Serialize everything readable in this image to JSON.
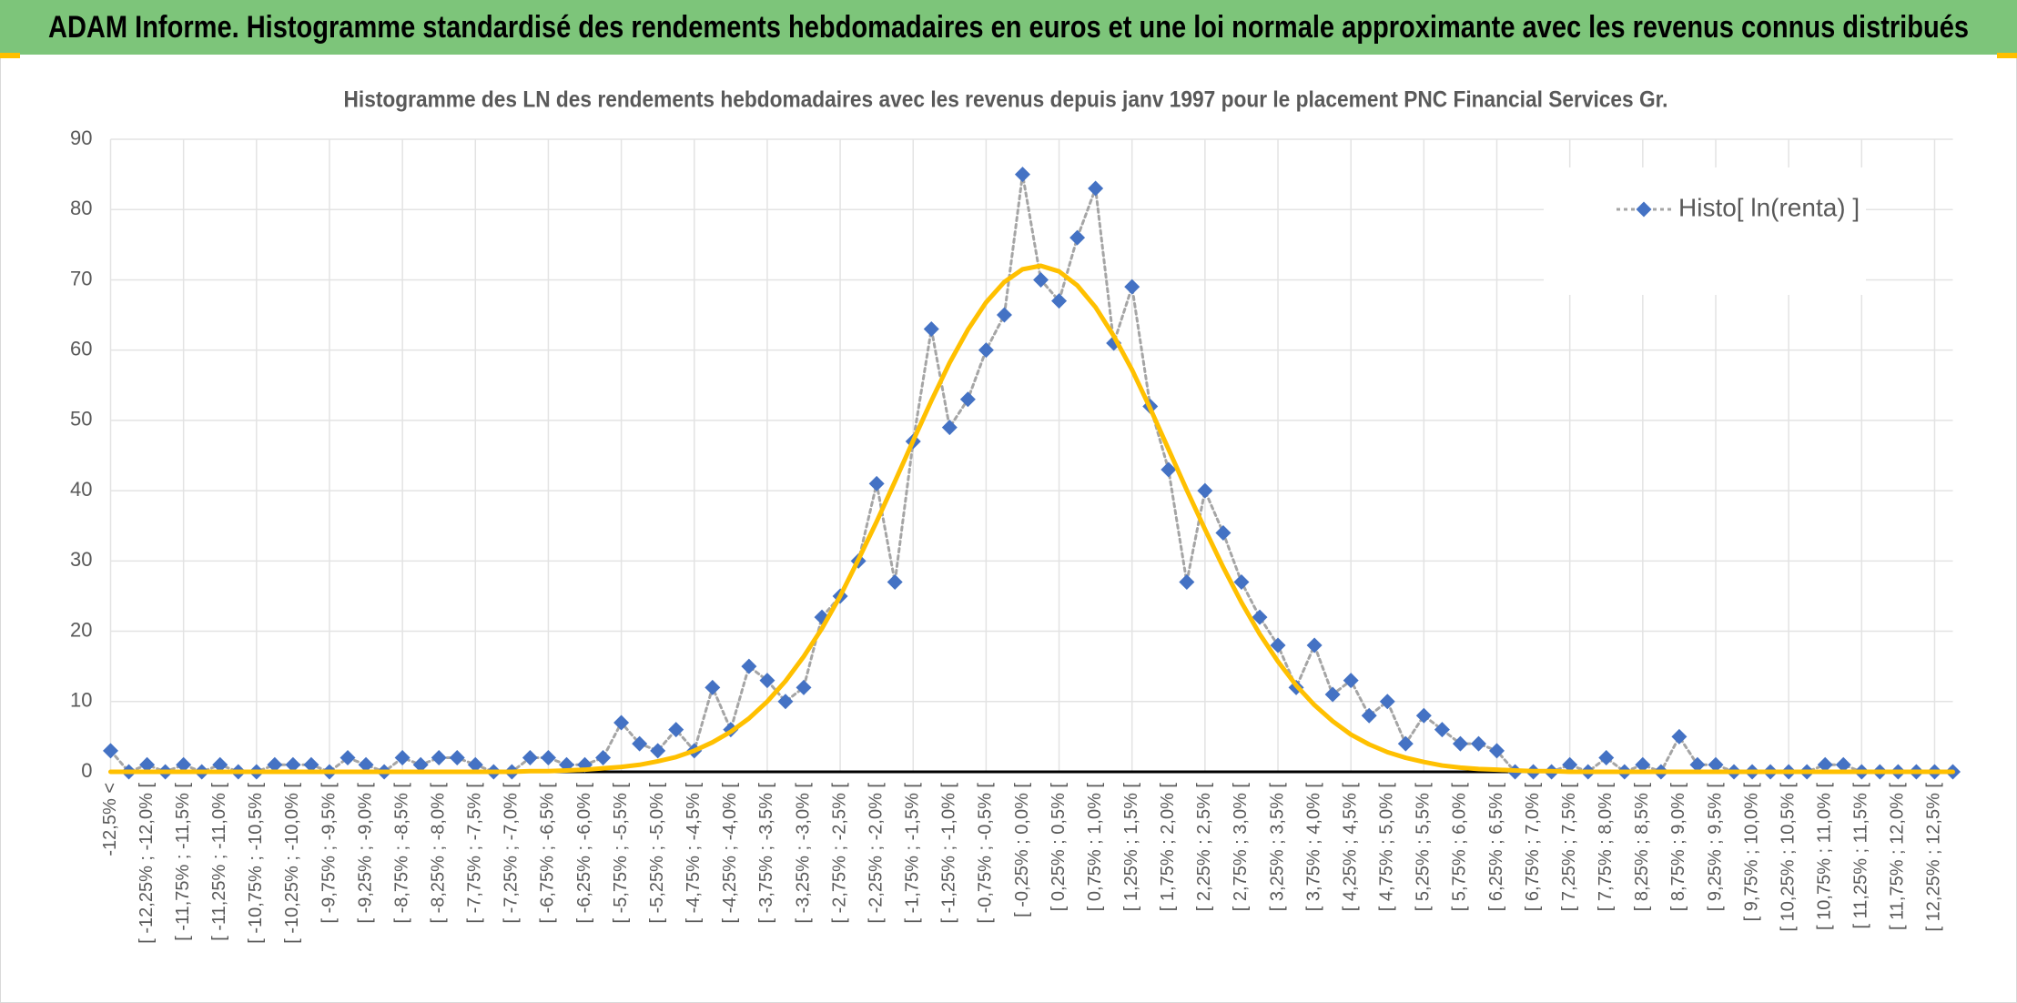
{
  "header": {
    "title": "ADAM Informe. Histogramme standardisé des rendements hebdomadaires en euros et une loi normale approximante avec les revenus connus distribués"
  },
  "chart_data": {
    "type": "line",
    "title": "Histogramme des LN des rendements hebdomadaires avec les revenus depuis janv 1997 pour le placement PNC Financial Services Gr.",
    "categories": [
      "-12,5% <",
      null,
      "[ -12,25% ; -12,0% [",
      null,
      "[ -11,75% ; -11,5% [",
      null,
      "[ -11,25% ; -11,0% [",
      null,
      "[ -10,75% ; -10,5% [",
      null,
      "[ -10,25% ; -10,0% [",
      null,
      "[ -9,75% ; -9,5% [",
      null,
      "[ -9,25% ; -9,0% [",
      null,
      "[ -8,75% ; -8,5% [",
      null,
      "[ -8,25% ; -8,0% [",
      null,
      "[ -7,75% ; -7,5% [",
      null,
      "[ -7,25% ; -7,0% [",
      null,
      "[ -6,75% ; -6,5% [",
      null,
      "[ -6,25% ; -6,0% [",
      null,
      "[ -5,75% ; -5,5% [",
      null,
      "[ -5,25% ; -5,0% [",
      null,
      "[ -4,75% ; -4,5% [",
      null,
      "[ -4,25% ; -4,0% [",
      null,
      "[ -3,75% ; -3,5% [",
      null,
      "[ -3,25% ; -3,0% [",
      null,
      "[ -2,75% ; -2,5% [",
      null,
      "[ -2,25% ; -2,0% [",
      null,
      "[ -1,75% ; -1,5% [",
      null,
      "[ -1,25% ; -1,0% [",
      null,
      "[ -0,75% ; -0,5% [",
      null,
      "[ -0,25% ; 0,0% [",
      null,
      "[ 0,25% ; 0,5% [",
      null,
      "[ 0,75% ; 1,0% [",
      null,
      "[ 1,25% ; 1,5% [",
      null,
      "[ 1,75% ; 2,0% [",
      null,
      "[ 2,25% ; 2,5% [",
      null,
      "[ 2,75% ; 3,0% [",
      null,
      "[ 3,25% ; 3,5% [",
      null,
      "[ 3,75% ; 4,0% [",
      null,
      "[ 4,25% ; 4,5% [",
      null,
      "[ 4,75% ; 5,0% [",
      null,
      "[ 5,25% ; 5,5% [",
      null,
      "[ 5,75% ; 6,0% [",
      null,
      "[ 6,25% ; 6,5% [",
      null,
      "[ 6,75% ; 7,0% [",
      null,
      "[ 7,25% ; 7,5% [",
      null,
      "[ 7,75% ; 8,0% [",
      null,
      "[ 8,25% ; 8,5% [",
      null,
      "[ 8,75% ; 9,0% [",
      null,
      "[ 9,25% ; 9,5% [",
      null,
      "[ 9,75% ; 10,0% [",
      null,
      "[ 10,25% ; 10,5% [",
      null,
      "[ 10,75% ; 11,0% [",
      null,
      "[ 11,25% ; 11,5% [",
      null,
      "[ 11,75% ; 12,0% [",
      null,
      "[ 12,25% ; 12,5% [",
      null
    ],
    "series": [
      {
        "name": "Histo[ ln(renta) ]",
        "color": "#4472c4",
        "line_color": "#a5a5a5",
        "values": [
          3,
          0,
          1,
          0,
          1,
          0,
          1,
          0,
          0,
          1,
          1,
          1,
          0,
          2,
          1,
          0,
          2,
          1,
          2,
          2,
          1,
          0,
          0,
          2,
          2,
          1,
          1,
          2,
          7,
          4,
          3,
          6,
          3,
          12,
          6,
          15,
          13,
          10,
          12,
          22,
          25,
          30,
          41,
          27,
          47,
          63,
          49,
          53,
          60,
          65,
          85,
          70,
          67,
          76,
          83,
          61,
          69,
          52,
          43,
          27,
          40,
          34,
          27,
          22,
          18,
          12,
          18,
          11,
          13,
          8,
          10,
          4,
          8,
          6,
          4,
          4,
          3,
          0,
          0,
          0,
          1,
          0,
          2,
          0,
          1,
          0,
          5,
          1,
          1,
          0,
          0,
          0,
          0,
          0,
          1,
          1,
          0,
          0,
          0,
          0,
          0,
          0
        ]
      },
      {
        "color": "#ffc000",
        "values": [
          0,
          0,
          0,
          0,
          0,
          0,
          0,
          0,
          0,
          0,
          0,
          0,
          0,
          0,
          0,
          0,
          0,
          0,
          0,
          0,
          0,
          0,
          0,
          0.1,
          0.1,
          0.2,
          0.3,
          0.5,
          0.7,
          1.0,
          1.5,
          2.1,
          3.0,
          4.2,
          5.7,
          7.6,
          10.0,
          12.9,
          16.4,
          20.4,
          25.0,
          30.2,
          35.6,
          41.3,
          47.1,
          52.8,
          58.2,
          62.9,
          66.8,
          69.7,
          71.5,
          72.0,
          71.2,
          69.2,
          66.1,
          62.0,
          57.2,
          51.7,
          45.9,
          40.1,
          34.5,
          29.1,
          24.1,
          19.6,
          15.7,
          12.3,
          9.5,
          7.2,
          5.3,
          3.9,
          2.8,
          2.0,
          1.4,
          0.9,
          0.6,
          0.4,
          0.3,
          0.2,
          0.1,
          0.1,
          0,
          0,
          0,
          0,
          0,
          0,
          0,
          0,
          0,
          0,
          0,
          0,
          0,
          0,
          0,
          0,
          0,
          0,
          0,
          0,
          0,
          0
        ]
      }
    ],
    "ylim": [
      0,
      90
    ],
    "yticks": [
      0,
      10,
      20,
      30,
      40,
      50,
      60,
      70,
      80,
      90
    ],
    "grid": true,
    "legend": "top-right"
  }
}
